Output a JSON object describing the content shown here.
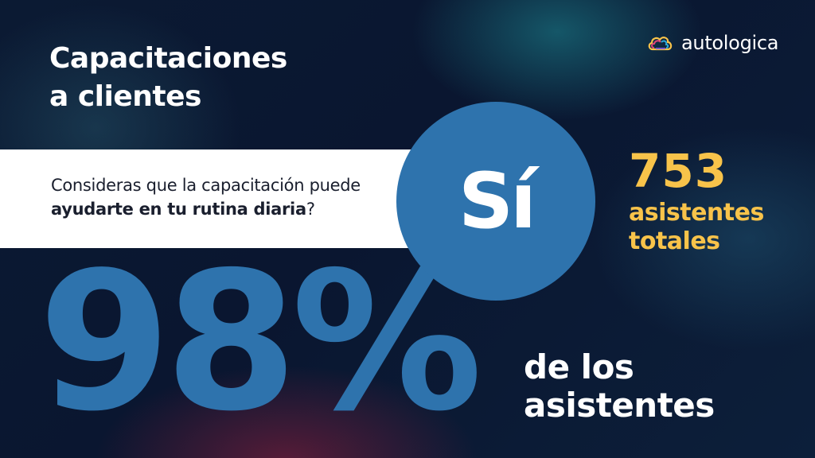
{
  "title": {
    "line1": "Capacitaciones",
    "line2": "a clientes"
  },
  "logo": {
    "text": "autologica",
    "icon": "cloud-logo-icon"
  },
  "question": {
    "prefix": "Consideras que la capacitación puede",
    "bold": "ayudarte en tu rutina diaria",
    "suffix": "?"
  },
  "answer": {
    "text": "Sí",
    "color": "#2e73ad"
  },
  "percentage": {
    "text": "98%",
    "color": "#2e73ad"
  },
  "attendees": {
    "count": "753",
    "label_line1": "asistentes",
    "label_line2": "totales",
    "color": "#f8c34a"
  },
  "of_attendees": {
    "line1": "de los",
    "line2": "asistentes"
  }
}
